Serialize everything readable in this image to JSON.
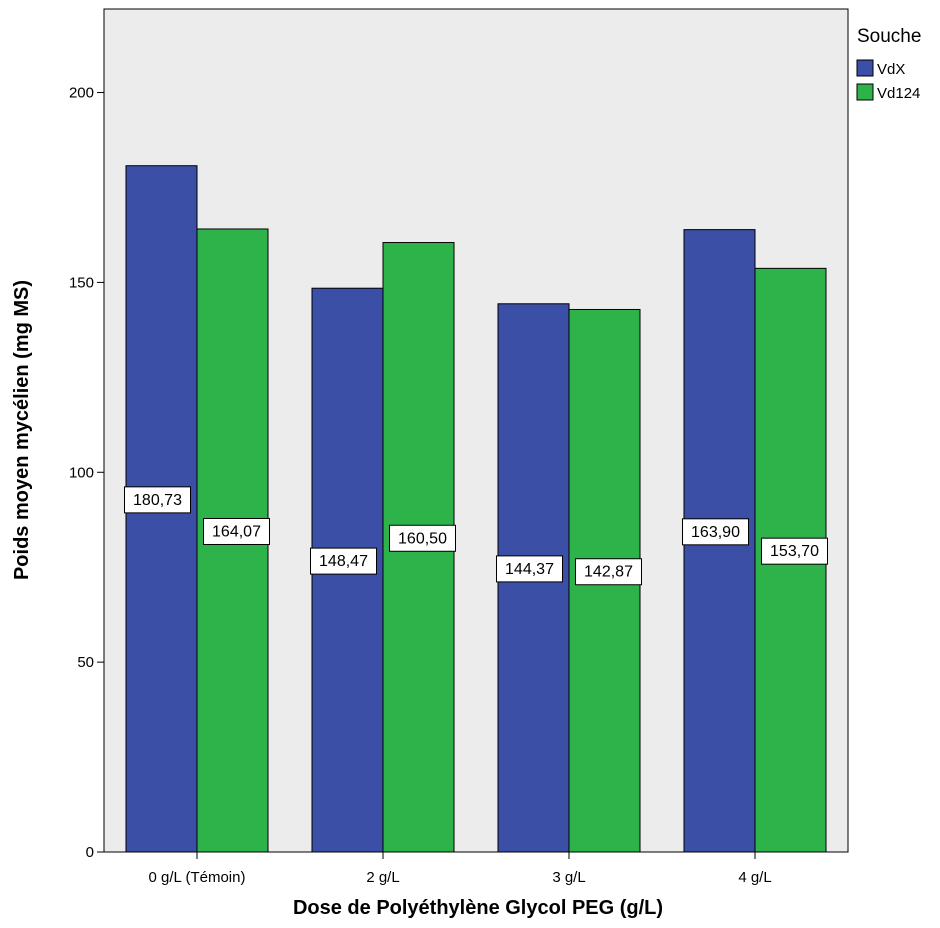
{
  "chart_data": {
    "type": "bar",
    "xlabel": "Dose de Polyéthylène Glycol PEG (g/L)",
    "ylabel": "Poids moyen mycélien (mg MS)",
    "categories": [
      "0 g/L (Témoin)",
      "2 g/L",
      "3 g/L",
      "4 g/L"
    ],
    "series": [
      {
        "name": "VdX",
        "color": "#3a4fa5",
        "values": [
          180.73,
          148.47,
          144.37,
          163.9
        ],
        "labels": [
          "180,73",
          "148,47",
          "144,37",
          "163,90"
        ]
      },
      {
        "name": "Vd124",
        "color": "#2db34a",
        "values": [
          164.07,
          160.5,
          142.87,
          153.7
        ],
        "labels": [
          "164,07",
          "160,50",
          "142,87",
          "153,70"
        ]
      }
    ],
    "ylim": [
      0,
      222
    ],
    "yticks": [
      0,
      50,
      100,
      150,
      200
    ],
    "grid": false,
    "legend": {
      "title": "Souche",
      "position": "top-right"
    },
    "plot_background": "#ececec"
  }
}
